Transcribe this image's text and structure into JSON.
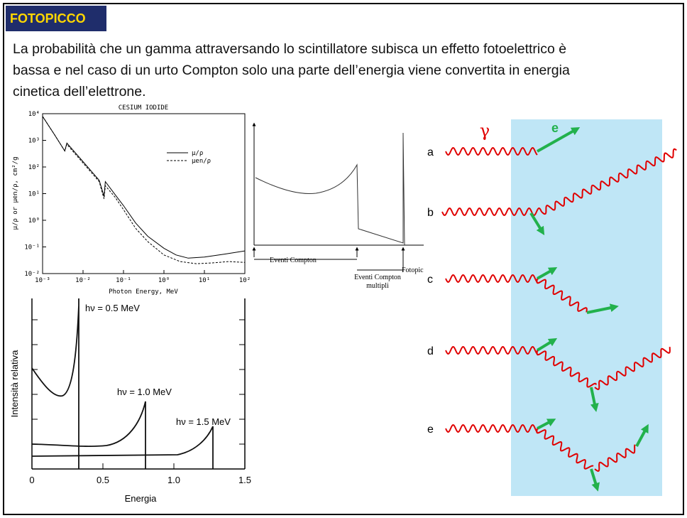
{
  "header": {
    "title": "FOTOPICCO"
  },
  "body": {
    "lines": [
      "La probabilità che un gamma attraversando lo scintillatore subisca un effetto fotoelettrico è",
      "bassa e nel caso di un urto Compton solo una parte dell’energia viene convertita in energia",
      "cinetica dell’elettrone."
    ]
  },
  "figure_attenuation": {
    "title": "CESIUM IODIDE",
    "x_label": "Photon Energy, MeV",
    "y_label": "μ/ρ  or  μen/ρ, cm²/g",
    "legend": [
      "μ/ρ",
      "μen/ρ"
    ],
    "x_ticks": [
      "10⁻³",
      "10⁻²",
      "10⁻¹",
      "10⁰",
      "10¹",
      "10²"
    ],
    "y_ticks": [
      "10⁻²",
      "10⁻¹",
      "10⁰",
      "10¹",
      "10²",
      "10³",
      "10⁴"
    ]
  },
  "figure_spectrum": {
    "compton": "Eventi Compton",
    "multiple": [
      "Eventi Compton",
      "multipli"
    ],
    "photopeak": "Fotopic"
  },
  "figure_energy": {
    "x_label": "Energia",
    "y_label": "Intensità relativa",
    "x_ticks": [
      "0",
      "0.5",
      "1.0",
      "1.5"
    ],
    "curves": [
      "hν = 0.5 MeV",
      "hν = 1.0 MeV",
      "hν = 1.5 MeV"
    ]
  },
  "figure_interactions": {
    "gamma": "γ",
    "electron": "e",
    "rows": [
      "a",
      "b",
      "c",
      "d",
      "e"
    ]
  }
}
